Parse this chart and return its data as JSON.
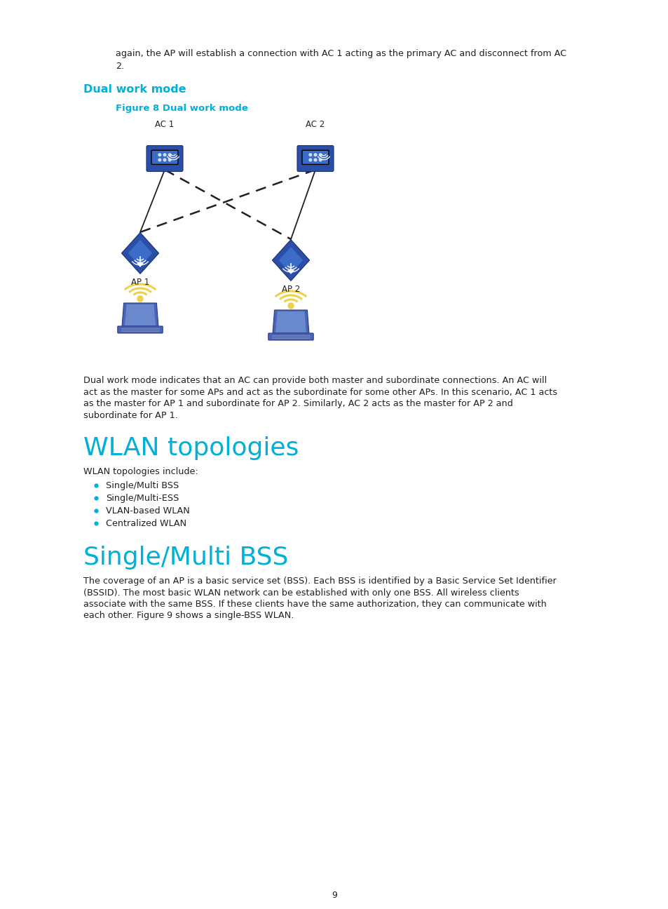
{
  "bg_color": "#ffffff",
  "text_color": "#231f20",
  "cyan_color": "#00b0d8",
  "body_font_size": 9.2,
  "heading1_font_size": 26,
  "heading2_font_size": 11.5,
  "figure_caption_font_size": 9.5,
  "intro_line1": "again, the AP will establish a connection with AC 1 acting as the primary AC and disconnect from AC",
  "intro_line2": "2.",
  "section1_heading": "Dual work mode",
  "figure_caption": "Figure 8 Dual work mode",
  "body_text1_lines": [
    "Dual work mode indicates that an AC can provide both master and subordinate connections. An AC will",
    "act as the master for some APs and act as the subordinate for some other APs. In this scenario, AC 1 acts",
    "as the master for AP 1 and subordinate for AP 2. Similarly, AC 2 acts as the master for AP 2 and",
    "subordinate for AP 1."
  ],
  "section2_heading": "WLAN topologies",
  "wlan_intro": "WLAN topologies include:",
  "wlan_bullets": [
    "Single/Multi BSS",
    "Single/Multi-ESS",
    "VLAN-based WLAN",
    "Centralized WLAN"
  ],
  "section3_heading": "Single/Multi BSS",
  "bss_body_lines": [
    "The coverage of an AP is a basic service set (BSS). Each BSS is identified by a Basic Service Set Identifier",
    "(BSSID). The most basic WLAN network can be established with only one BSS. All wireless clients",
    "associate with the same BSS. If these clients have the same authorization, they can communicate with",
    "each other. Figure 9 shows a single-BSS WLAN."
  ],
  "page_number": "9",
  "device_color_dark": "#2b4fa8",
  "device_color_mid": "#3a6cc8",
  "device_color_light": "#4d84d8",
  "wifi_yellow": "#f0d050",
  "laptop_body": "#4a65b8",
  "laptop_screen": "#6a88cc"
}
